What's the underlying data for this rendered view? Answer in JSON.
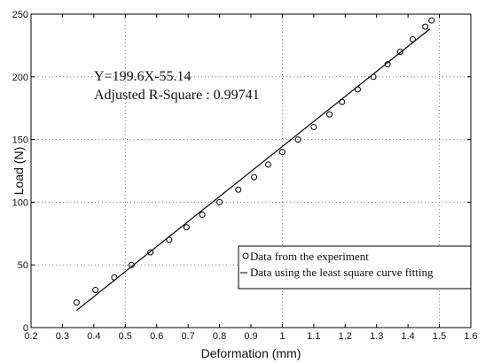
{
  "chart_data": {
    "type": "scatter",
    "xlabel": "Deformation (mm)",
    "ylabel": "Load (N)",
    "xlim": [
      0.2,
      1.6
    ],
    "ylim": [
      0,
      250
    ],
    "xticks": [
      "0.2",
      "0.3",
      "0.4",
      "0.5",
      "0.6",
      "0.7",
      "0.8",
      "0.9",
      "1",
      "1.1",
      "1.2",
      "1.3",
      "1.4",
      "1.5",
      "1.6"
    ],
    "yticks": [
      "0",
      "50",
      "100",
      "150",
      "200",
      "250"
    ],
    "grid": "dotted",
    "annotations": [
      "Y=199.6X-55.14",
      "Adjusted R-Square : 0.99741"
    ],
    "legend_position": "bottom-right",
    "series": [
      {
        "name": "Data from the experiment",
        "kind": "markers",
        "marker": "open-circle",
        "x": [
          0.345,
          0.405,
          0.465,
          0.52,
          0.58,
          0.64,
          0.695,
          0.745,
          0.8,
          0.86,
          0.91,
          0.955,
          1.0,
          1.05,
          1.1,
          1.15,
          1.19,
          1.24,
          1.29,
          1.335,
          1.375,
          1.415,
          1.455,
          1.475
        ],
        "y": [
          20,
          30,
          40,
          50,
          60,
          70,
          80,
          90,
          100,
          110,
          120,
          130,
          140,
          150,
          160,
          170,
          180,
          190,
          200,
          210,
          220,
          230,
          240,
          245
        ]
      },
      {
        "name": "Data using the least square curve fitting",
        "kind": "line",
        "x": [
          0.345,
          1.47
        ],
        "y": [
          13.72,
          238.27
        ]
      }
    ]
  }
}
